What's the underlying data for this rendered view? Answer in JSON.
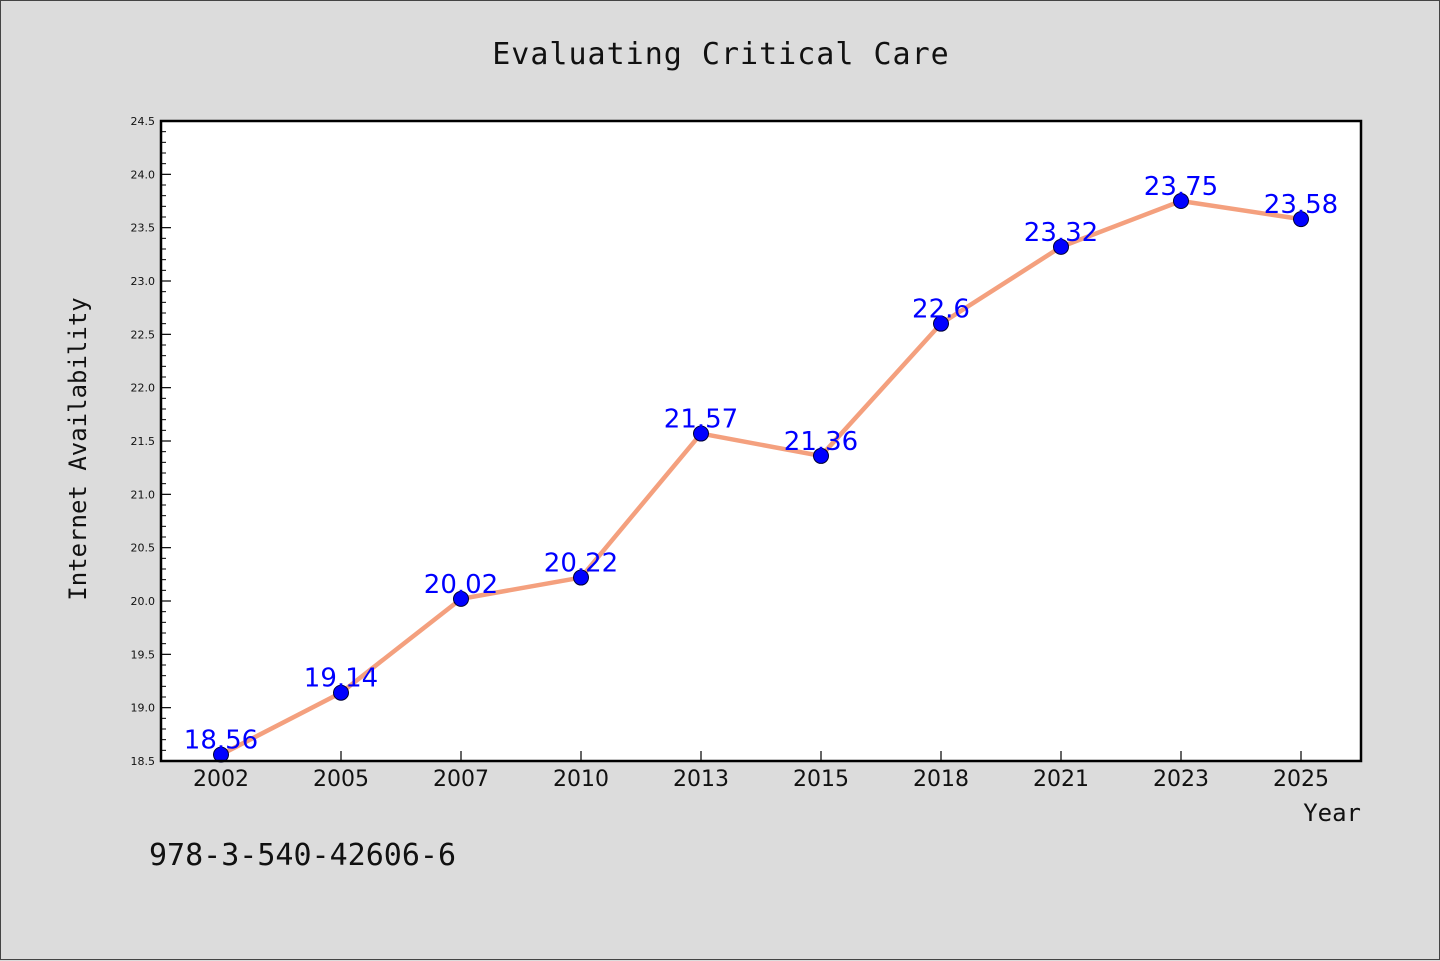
{
  "chart_data": {
    "type": "line",
    "title": "Evaluating Critical Care",
    "xlabel": "Year",
    "ylabel": "Internet Availability",
    "categories": [
      "2002",
      "2005",
      "2007",
      "2010",
      "2013",
      "2015",
      "2018",
      "2021",
      "2023",
      "2025"
    ],
    "series": [
      {
        "values": [
          18.56,
          19.14,
          20.02,
          20.22,
          21.57,
          21.36,
          22.6,
          23.32,
          23.75,
          23.58
        ],
        "labels": [
          "18.56",
          "19.14",
          "20.02",
          "20.22",
          "21.57",
          "21.36",
          "22.6",
          "23.32",
          "23.75",
          "23.58"
        ]
      }
    ],
    "ylim": [
      18.5,
      24.5
    ],
    "yticks": [
      "18.5",
      "19.0",
      "19.5",
      "20.0",
      "20.5",
      "21.0",
      "21.5",
      "22.0",
      "22.5",
      "23.0",
      "23.5",
      "24.0",
      "24.5"
    ],
    "grid": false,
    "line_color": "#f4a07e",
    "marker_color": "#0000ff",
    "label_color": "#0000ff",
    "background_color": "#dcdcdc",
    "plot_background": "#ffffff"
  },
  "footnote": "978-3-540-42606-6"
}
